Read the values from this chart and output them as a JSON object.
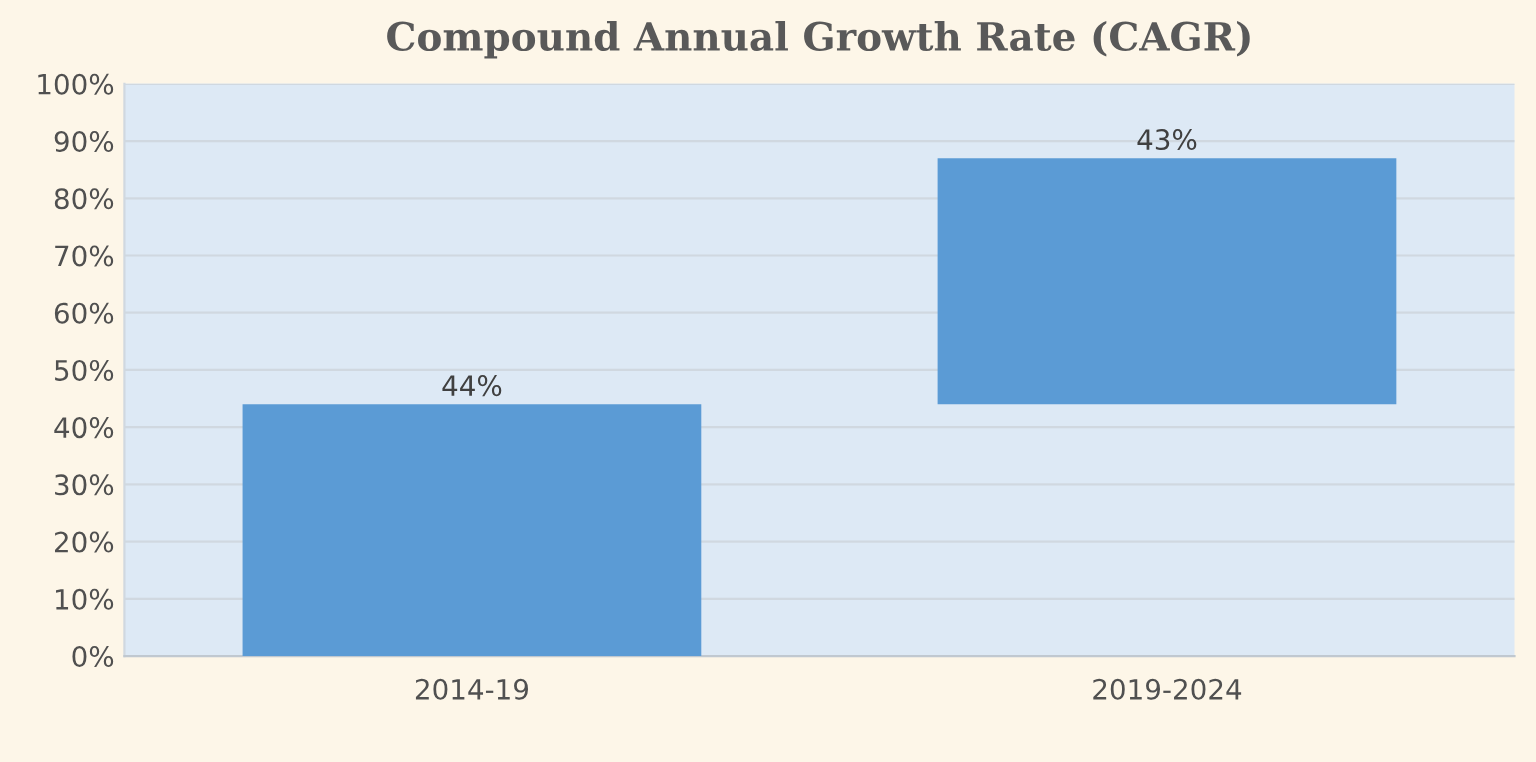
{
  "chart_data": {
    "type": "bar",
    "title": "Compound Annual Growth Rate (CAGR)",
    "categories": [
      "2014-19",
      "2019-2024"
    ],
    "values": [
      44,
      43
    ],
    "base": [
      0,
      44
    ],
    "color": "#5b9bd5",
    "value_labels": [
      "44%",
      "43%"
    ],
    "ylim": [
      0,
      100
    ],
    "yticks": [
      {
        "value": 0,
        "label": "0%"
      },
      {
        "value": 10,
        "label": "10%"
      },
      {
        "value": 20,
        "label": "20%"
      },
      {
        "value": 30,
        "label": "30%"
      },
      {
        "value": 40,
        "label": "40%"
      },
      {
        "value": 50,
        "label": "50%"
      },
      {
        "value": 60,
        "label": "60%"
      },
      {
        "value": 70,
        "label": "70%"
      },
      {
        "value": 80,
        "label": "80%"
      },
      {
        "value": 90,
        "label": "90%"
      },
      {
        "value": 100,
        "label": "100%"
      }
    ],
    "grid": "y"
  }
}
